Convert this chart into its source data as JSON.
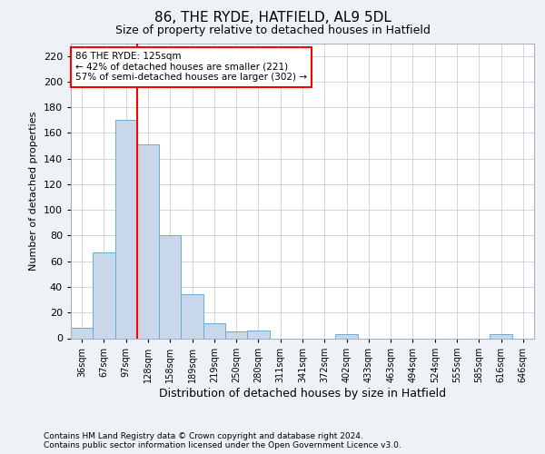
{
  "title1": "86, THE RYDE, HATFIELD, AL9 5DL",
  "title2": "Size of property relative to detached houses in Hatfield",
  "xlabel": "Distribution of detached houses by size in Hatfield",
  "ylabel": "Number of detached properties",
  "categories": [
    "36sqm",
    "67sqm",
    "97sqm",
    "128sqm",
    "158sqm",
    "189sqm",
    "219sqm",
    "250sqm",
    "280sqm",
    "311sqm",
    "341sqm",
    "372sqm",
    "402sqm",
    "433sqm",
    "463sqm",
    "494sqm",
    "524sqm",
    "555sqm",
    "585sqm",
    "616sqm",
    "646sqm"
  ],
  "values": [
    8,
    67,
    170,
    151,
    80,
    34,
    12,
    5,
    6,
    0,
    0,
    0,
    3,
    0,
    0,
    0,
    0,
    0,
    0,
    3,
    0
  ],
  "bar_color": "#c8d8ea",
  "bar_edge_color": "#6aaad4",
  "vline_x": 2.5,
  "vline_color": "red",
  "annotation_text": "86 THE RYDE: 125sqm\n← 42% of detached houses are smaller (221)\n57% of semi-detached houses are larger (302) →",
  "annotation_box_color": "white",
  "annotation_box_edge": "red",
  "ylim": [
    0,
    230
  ],
  "yticks": [
    0,
    20,
    40,
    60,
    80,
    100,
    120,
    140,
    160,
    180,
    200,
    220
  ],
  "footnote1": "Contains HM Land Registry data © Crown copyright and database right 2024.",
  "footnote2": "Contains public sector information licensed under the Open Government Licence v3.0.",
  "bg_color": "#eef2f7",
  "plot_bg_color": "white",
  "grid_color": "#c8d0da",
  "title1_fontsize": 11,
  "title2_fontsize": 9,
  "ylabel_fontsize": 8,
  "xlabel_fontsize": 9,
  "tick_fontsize": 7,
  "ytick_fontsize": 8,
  "footnote_fontsize": 6.5
}
